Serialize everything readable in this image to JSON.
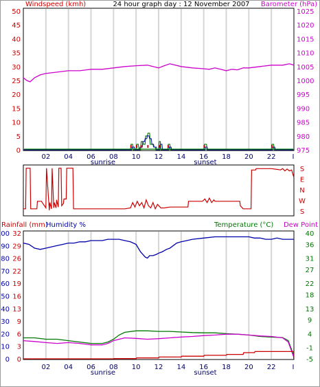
{
  "header": {
    "title": "24 hour graph day : 12 November 2007",
    "left_label": "Windspeed (kmh)",
    "right_label": "Barometer (hPa)"
  },
  "bottom_header": {
    "rainfall_label": "Rainfall (mm)",
    "humidity_label": "Humidity %",
    "temperature_label": "Temperature (°C)",
    "dewpoint_label": "Dew Point"
  },
  "x_axis": {
    "tick_labels": [
      "02",
      "04",
      "06",
      "08",
      "10",
      "12",
      "14",
      "16",
      "18",
      "20",
      "22"
    ],
    "end_marker": "I",
    "sunrise_label": "sunrise",
    "sunset_label": "sunset"
  },
  "colors": {
    "wind": "#cc0000",
    "barometer": "#cc00cc",
    "humidity": "#0000aa",
    "temperature": "#007700",
    "rain": "#cc0000",
    "dew": "#cc00cc",
    "grid": "#d6d6d6"
  },
  "chart_data": [
    {
      "type": "line",
      "name": "wind-barometer",
      "x_range_hours": [
        0,
        24
      ],
      "y_left": {
        "ticks": [
          0,
          5,
          10,
          15,
          20,
          25,
          30,
          35,
          40,
          45,
          50
        ]
      },
      "y_right": {
        "ticks": [
          975,
          980,
          985,
          990,
          995,
          1000,
          1005,
          1010,
          1015,
          1020,
          1025
        ]
      },
      "series": [
        {
          "axis": "right",
          "x": [
            0,
            0.3,
            0.6,
            1,
            1.5,
            2,
            3,
            4,
            5,
            6,
            7,
            8,
            9,
            10,
            11,
            11.5,
            12,
            12.5,
            13,
            14,
            15,
            16,
            16.5,
            17,
            17.5,
            18,
            18.5,
            19,
            19.5,
            20,
            21,
            22,
            23,
            23.6,
            24
          ],
          "y": [
            1001,
            1000,
            999.5,
            1001,
            1002,
            1002.5,
            1003,
            1003.5,
            1003.5,
            1004,
            1004,
            1004.5,
            1005,
            1005.3,
            1005.5,
            1005,
            1004.5,
            1005.3,
            1006,
            1005,
            1004.5,
            1004.2,
            1004,
            1004.5,
            1004,
            1003.5,
            1004,
            1003.8,
            1004.5,
            1004.5,
            1005,
            1005.5,
            1005.5,
            1006,
            1005.5
          ]
        },
        {
          "axis": "left",
          "x": [
            0,
            9.5,
            9.55,
            9.7,
            9.75,
            10,
            10.05,
            10.2,
            10.25,
            10.4,
            10.45,
            10.6,
            10.65,
            10.8,
            10.85,
            11,
            11.05,
            11.2,
            11.25,
            11.5,
            11.55,
            11.7,
            11.75,
            12,
            12.05,
            12.15,
            12.2,
            12.8,
            12.85,
            13,
            13.05,
            16,
            16.05,
            16.25,
            16.3,
            22,
            22.05,
            22.2,
            22.25,
            24
          ],
          "y": [
            0,
            0,
            2,
            2,
            0,
            0,
            2,
            2,
            0,
            0,
            3,
            3,
            2,
            2,
            5,
            5,
            6,
            6,
            2,
            2,
            1,
            1,
            0,
            0,
            3,
            3,
            0,
            0,
            2,
            2,
            0,
            0,
            2,
            2,
            0,
            0,
            2,
            2,
            0,
            0
          ]
        },
        {
          "axis": "left",
          "x": [
            0,
            9.6,
            9.65,
            9.85,
            9.9,
            10.3,
            10.35,
            10.55,
            10.6,
            10.75,
            10.8,
            10.95,
            11,
            11.15,
            11.2,
            11.35,
            11.4,
            11.55,
            11.6,
            11.8,
            11.85,
            12.1,
            12.15,
            12.3,
            12.35,
            12.9,
            12.95,
            13.1,
            13.15,
            16.1,
            16.15,
            16.3,
            16.35,
            22.1,
            22.15,
            22.3,
            22.35,
            24
          ],
          "y": [
            0,
            0,
            1,
            1,
            0,
            0,
            1,
            1,
            3,
            3,
            4,
            4,
            5,
            5,
            4,
            4,
            2,
            2,
            1,
            1,
            0,
            0,
            2,
            2,
            0,
            0,
            1,
            1,
            0,
            0,
            1,
            1,
            0,
            0,
            1,
            1,
            0,
            0
          ]
        }
      ]
    },
    {
      "type": "line",
      "name": "wind-direction",
      "y_labels": [
        "S",
        "E",
        "N",
        "W",
        "S"
      ],
      "series": [
        {
          "x": [
            0,
            0.2,
            0.25,
            0.6,
            0.65,
            1.2,
            1.25,
            1.6,
            2.0,
            2.05,
            2.3,
            2.35,
            2.5,
            2.55,
            2.7,
            2.75,
            2.9,
            2.95,
            3.1,
            3.15,
            3.35,
            3.4,
            3.55,
            3.6,
            3.8,
            3.85,
            4.4,
            4.45,
            5,
            6,
            7,
            8,
            9,
            9.5,
            9.7,
            9.9,
            10.1,
            10.3,
            10.5,
            10.7,
            10.9,
            11.1,
            11.3,
            11.5,
            11.7,
            11.9,
            12.2,
            12.5,
            13,
            14,
            14.6,
            14.65,
            15,
            15.5,
            15.9,
            16.1,
            16.3,
            16.5,
            16.7,
            16.9,
            17,
            17.5,
            18,
            18.5,
            19,
            19.2,
            19.25,
            19.5,
            19.8,
            20.2,
            20.25,
            20.6,
            20.65,
            21,
            22,
            22.6,
            22.8,
            23,
            23.2,
            23.4,
            23.6,
            23.8,
            24
          ],
          "y": [
            0.08,
            0.08,
            0.99,
            0.99,
            0.08,
            0.08,
            0.25,
            0.25,
            0.1,
            0.99,
            0.05,
            0.22,
            0.08,
            0.99,
            0.1,
            0.22,
            0.1,
            0.28,
            0.12,
            0.99,
            0.99,
            0.15,
            0.2,
            0.3,
            0.3,
            0.99,
            0.99,
            0.08,
            0.08,
            0.08,
            0.08,
            0.08,
            0.08,
            0.1,
            0.22,
            0.12,
            0.25,
            0.15,
            0.22,
            0.1,
            0.28,
            0.15,
            0.1,
            0.22,
            0.08,
            0.18,
            0.1,
            0.1,
            0.12,
            0.12,
            0.12,
            0.25,
            0.25,
            0.25,
            0.25,
            0.3,
            0.22,
            0.32,
            0.22,
            0.28,
            0.25,
            0.25,
            0.25,
            0.25,
            0.25,
            0.25,
            0.15,
            0.08,
            0.08,
            0.08,
            0.95,
            0.95,
            0.98,
            0.98,
            0.98,
            0.96,
            0.95,
            0.98,
            0.93,
            0.97,
            0.93,
            0.95,
            0.78
          ]
        }
      ]
    },
    {
      "type": "line",
      "name": "humidity-temperature-rain",
      "y_left_outer": {
        "ticks": [
          0,
          10,
          20,
          30,
          40,
          50,
          60,
          70,
          80,
          90,
          100
        ]
      },
      "y_left_inner": {
        "ticks": [
          0,
          3,
          6,
          9,
          13,
          16,
          19,
          22,
          26,
          29,
          32
        ]
      },
      "y_right": {
        "ticks": [
          -5,
          -1,
          4,
          9,
          13,
          18,
          22,
          27,
          31,
          36,
          40
        ]
      },
      "series": [
        {
          "axis": "humidity",
          "x": [
            0,
            0.5,
            1,
            1.5,
            2,
            2.5,
            3,
            3.5,
            4,
            4.5,
            5,
            5.5,
            6,
            6.5,
            7,
            7.5,
            8,
            8.5,
            9,
            9.5,
            10,
            10.2,
            10.4,
            10.6,
            10.8,
            11,
            11.2,
            11.5,
            11.8,
            12,
            12.3,
            12.7,
            13,
            13.3,
            13.6,
            14,
            14.5,
            15,
            16,
            17,
            18,
            19,
            20,
            20.5,
            21,
            21.5,
            22,
            22.5,
            23,
            23.5,
            24
          ],
          "y": [
            92,
            91,
            88,
            87,
            88,
            89,
            90,
            91,
            92,
            92,
            93,
            93,
            94,
            94,
            94,
            95,
            95,
            95,
            94,
            93,
            91,
            88,
            85,
            83,
            81,
            80,
            82,
            82,
            83,
            84,
            85,
            87,
            88,
            90,
            92,
            93,
            94,
            95,
            96,
            97,
            97,
            97,
            97,
            96,
            96,
            95,
            95,
            96,
            95,
            95,
            95
          ]
        },
        {
          "axis": "temperature",
          "x": [
            0,
            1,
            2,
            3,
            4,
            5,
            6,
            7,
            7.5,
            8,
            8.5,
            9,
            10,
            11,
            12,
            13,
            14,
            15,
            16,
            17,
            18,
            19,
            20,
            21,
            22,
            23,
            23.5,
            24
          ],
          "y": [
            2.5,
            2.5,
            2.0,
            2.0,
            1.5,
            1.0,
            0.5,
            0.5,
            1.0,
            2.0,
            3.5,
            4.5,
            5.0,
            5.0,
            4.8,
            4.8,
            4.6,
            4.4,
            4.3,
            4.3,
            4.0,
            3.8,
            3.5,
            3.0,
            2.8,
            2.6,
            1.5,
            -4.0
          ]
        },
        {
          "axis": "temperature",
          "x": [
            0,
            1,
            2,
            3,
            4,
            5,
            6,
            7,
            7.5,
            8,
            8.5,
            9,
            10,
            11,
            12,
            13,
            14,
            15,
            16,
            17,
            18,
            19,
            20,
            21,
            22,
            23,
            23.5,
            24
          ],
          "y": [
            1.5,
            1.2,
            0.8,
            0.5,
            0.8,
            0.5,
            0.0,
            0.0,
            0.5,
            1.5,
            2.0,
            2.5,
            2.3,
            2.0,
            2.2,
            2.5,
            2.8,
            3.0,
            3.3,
            3.5,
            3.8,
            3.8,
            3.5,
            3.2,
            3.0,
            2.5,
            1.0,
            -4.5
          ]
        },
        {
          "axis": "rain",
          "x": [
            0,
            8,
            8.05,
            10,
            10.05,
            12,
            12.05,
            14,
            14.05,
            16,
            16.05,
            18,
            18.05,
            19.5,
            19.55,
            20.5,
            20.55,
            24
          ],
          "y": [
            0,
            0,
            0.1,
            0.1,
            0.4,
            0.4,
            0.8,
            0.8,
            1.2,
            1.2,
            1.6,
            1.6,
            2.0,
            2.0,
            2.8,
            2.8,
            3.3,
            3.3
          ]
        }
      ]
    }
  ]
}
